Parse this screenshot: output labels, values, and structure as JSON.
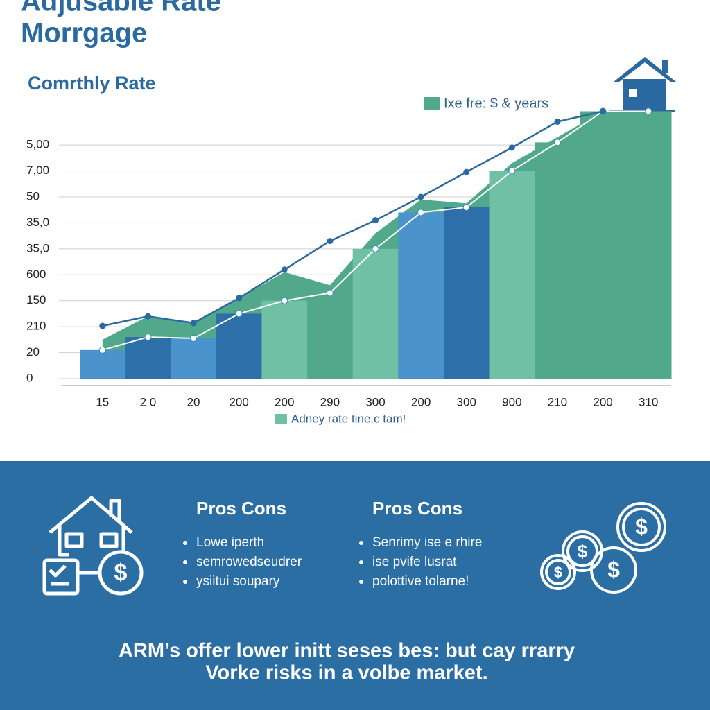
{
  "header": {
    "title_line1": "Adjusable Rate",
    "title_line2": "Morrgage",
    "subtitle": "Comrthly Rate"
  },
  "chart_data": {
    "type": "bar",
    "categories": [
      "15",
      "2 0",
      "20",
      "200",
      "200",
      "290",
      "300",
      "200",
      "300",
      "900",
      "210",
      "200",
      "310"
    ],
    "ylim": [
      0,
      10.5
    ],
    "yticks": [
      {
        "value": 0,
        "label": "0"
      },
      {
        "value": 1,
        "label": "20"
      },
      {
        "value": 2,
        "label": "210"
      },
      {
        "value": 3,
        "label": "150"
      },
      {
        "value": 4,
        "label": "600"
      },
      {
        "value": 5,
        "label": "35,0"
      },
      {
        "value": 6,
        "label": "35,0"
      },
      {
        "value": 7,
        "label": "50"
      },
      {
        "value": 8,
        "label": "7,00"
      },
      {
        "value": 9,
        "label": "5,00"
      }
    ],
    "grid": true,
    "series": [
      {
        "name": "Ixe fre: $ & years",
        "type": "area",
        "color": "#52a88a",
        "values": [
          1.5,
          2.4,
          2.1,
          3.1,
          4.1,
          3.6,
          5.6,
          6.9,
          6.75,
          8.3,
          9.3,
          10.3,
          10.3
        ]
      },
      {
        "name": "Adney rate tine.c tam!",
        "type": "bar",
        "color": "#6fc0a4",
        "colors": [
          "#4a93cc",
          "#2d6fa8",
          "#4a93cc",
          "#2d6fa8",
          "#6fc0a4",
          "#52a88a",
          "#6fc0a4",
          "#4a93cc",
          "#2d6fa8",
          "#6fc0a4",
          "#52a88a",
          "#52a88a",
          "#52a88a"
        ],
        "values": [
          1.1,
          1.6,
          1.55,
          2.5,
          3.0,
          3.3,
          5.0,
          6.4,
          6.6,
          8.0,
          9.1,
          10.3,
          10.3
        ]
      },
      {
        "type": "line",
        "color": "#2a6aa0",
        "values": [
          2.03,
          2.4,
          2.14,
          3.1,
          4.2,
          5.3,
          6.1,
          7.0,
          7.96,
          8.9,
          9.9,
          10.3,
          null
        ]
      }
    ]
  },
  "panel": {
    "columns": [
      {
        "heading": "Pros Cons",
        "items": [
          "Lowe iperth",
          "semrowedseudrer",
          "ysiitui soupary"
        ]
      },
      {
        "heading": "Pros Cons",
        "items": [
          "Senrimy ise e rhire",
          "ise pvife lusrat",
          "polottive tolarne!"
        ]
      }
    ],
    "summary": [
      "ARM’s offer lower initt seses bes: but cay rrarry",
      "Vorke risks in a volbe market."
    ]
  }
}
